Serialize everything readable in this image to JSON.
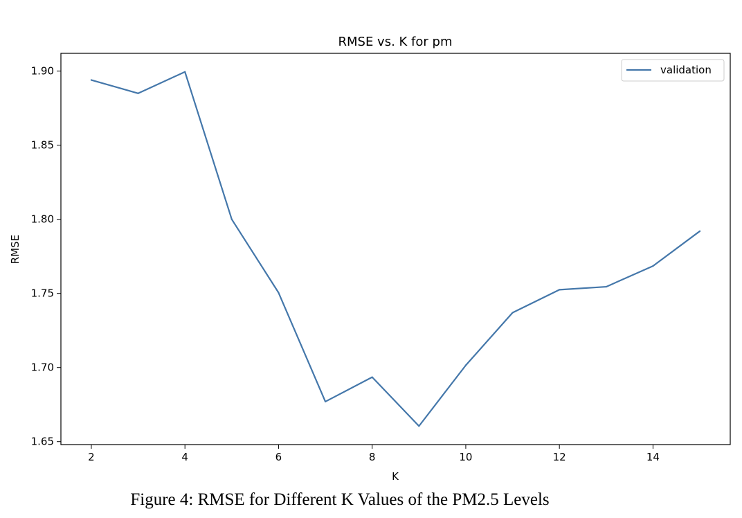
{
  "chart_data": {
    "type": "line",
    "title": "RMSE vs. K for pm",
    "xlabel": "K",
    "ylabel": "RMSE",
    "xlim": [
      1.35,
      15.65
    ],
    "ylim": [
      1.648,
      1.912
    ],
    "x_ticks": [
      2,
      4,
      6,
      8,
      10,
      12,
      14
    ],
    "y_ticks": [
      "1.65",
      "1.70",
      "1.75",
      "1.80",
      "1.85",
      "1.90"
    ],
    "grid": false,
    "legend_position": "top-right",
    "series": [
      {
        "name": "validation",
        "color": "#4477aa",
        "x": [
          2,
          3,
          4,
          5,
          6,
          7,
          8,
          9,
          10,
          11,
          12,
          13,
          14,
          15
        ],
        "y": [
          1.894,
          1.885,
          1.8995,
          1.8,
          1.7505,
          1.677,
          1.6935,
          1.6605,
          1.7015,
          1.737,
          1.7525,
          1.7545,
          1.7685,
          1.792
        ]
      }
    ]
  },
  "caption": "Figure 4: RMSE for Different K Values of the PM2.5 Levels"
}
